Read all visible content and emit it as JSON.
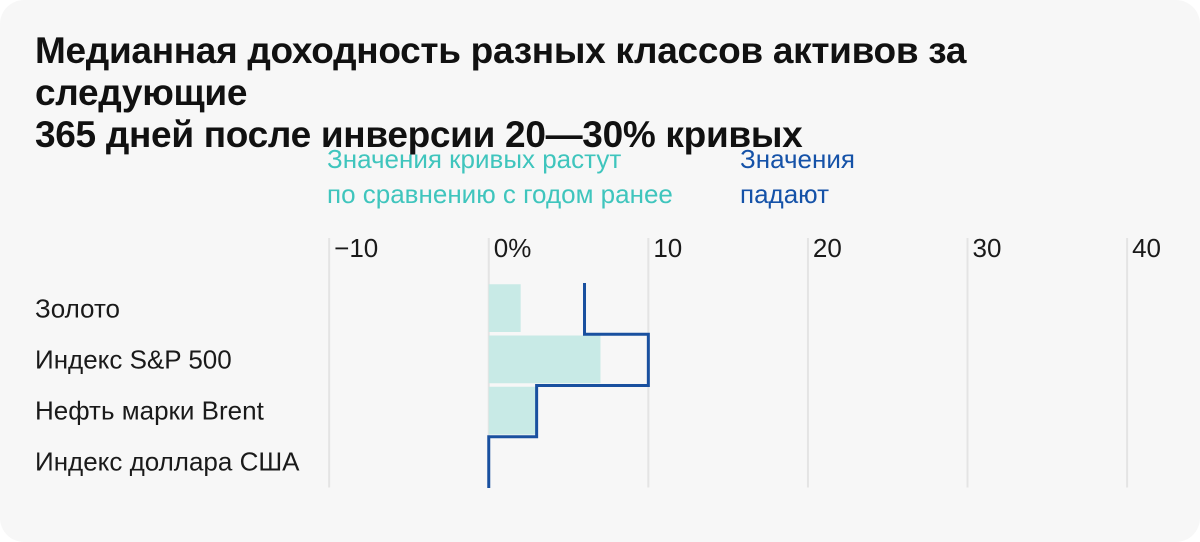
{
  "title": "Медианная доходность разных классов активов за следующие\n365 дней после инверсии 20—30% кривых",
  "annotations": {
    "grow": {
      "text": "Значения кривых растут\nпо сравнению с годом ранее"
    },
    "fall": {
      "text": "Значения\nпадают"
    }
  },
  "colors": {
    "card_bg": "#f7f7f7",
    "title": "#111111",
    "label": "#1a1a1a",
    "gridline": "#e4e4e4",
    "bar_fill": "#c8eae6",
    "step_line": "#19509f",
    "legend_grow_text": "#3fc5bd",
    "legend_fall_text": "#1552a8"
  },
  "chart_data": {
    "type": "bar",
    "orientation": "horizontal",
    "title": "Медианная доходность разных классов активов за следующие 365 дней после инверсии 20—30% кривых",
    "unit": "%",
    "grid": "vertical-only",
    "legend_position": "top-annotations",
    "categories": [
      "Золото",
      "Индекс S&P 500",
      "Нефть марки Brent",
      "Индекс доллара США"
    ],
    "series": [
      {
        "name": "Значения кривых растут по сравнению с годом ранее",
        "style": "filled-bar",
        "values": [
          2,
          7,
          3,
          0
        ]
      },
      {
        "name": "Значения падают",
        "style": "step-outline",
        "values": [
          6,
          10,
          3,
          0
        ]
      }
    ],
    "x_ticks": [
      {
        "value": -10,
        "label": "−10"
      },
      {
        "value": 0,
        "label": "0%"
      },
      {
        "value": 10,
        "label": "10"
      },
      {
        "value": 20,
        "label": "20"
      },
      {
        "value": 30,
        "label": "30"
      },
      {
        "value": 40,
        "label": "40"
      }
    ],
    "xlim": [
      -10.7,
      42.5
    ]
  }
}
